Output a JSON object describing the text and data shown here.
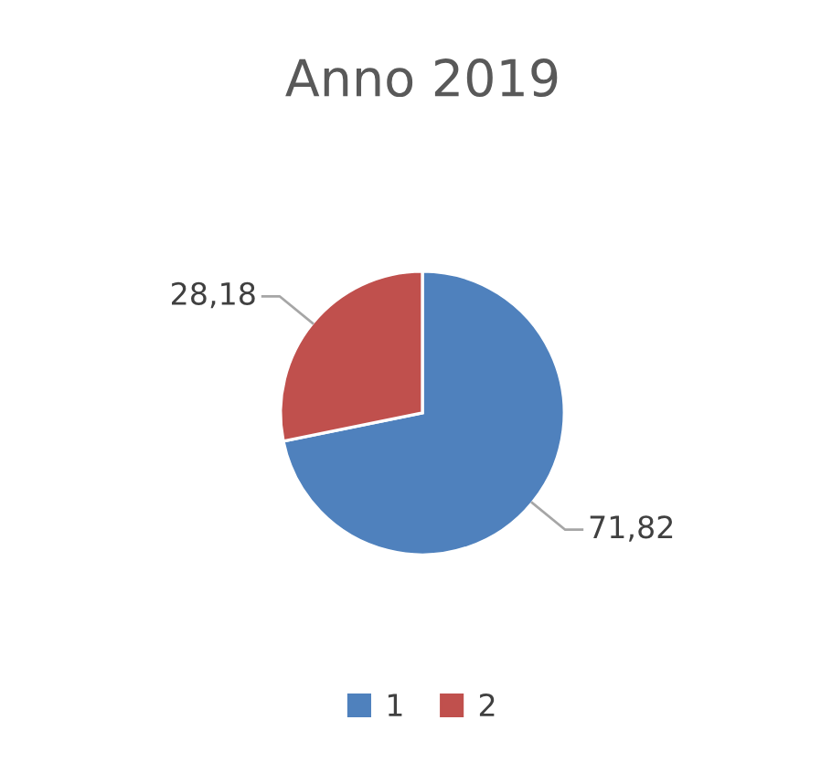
{
  "chart_data": {
    "type": "pie",
    "title": "Anno 2019",
    "categories": [
      "1",
      "2"
    ],
    "values": [
      71.82,
      28.18
    ],
    "colors": [
      "#4f81bd",
      "#c0504d"
    ],
    "value_labels": [
      "71,82",
      "28,18"
    ],
    "legend": "bottom"
  }
}
